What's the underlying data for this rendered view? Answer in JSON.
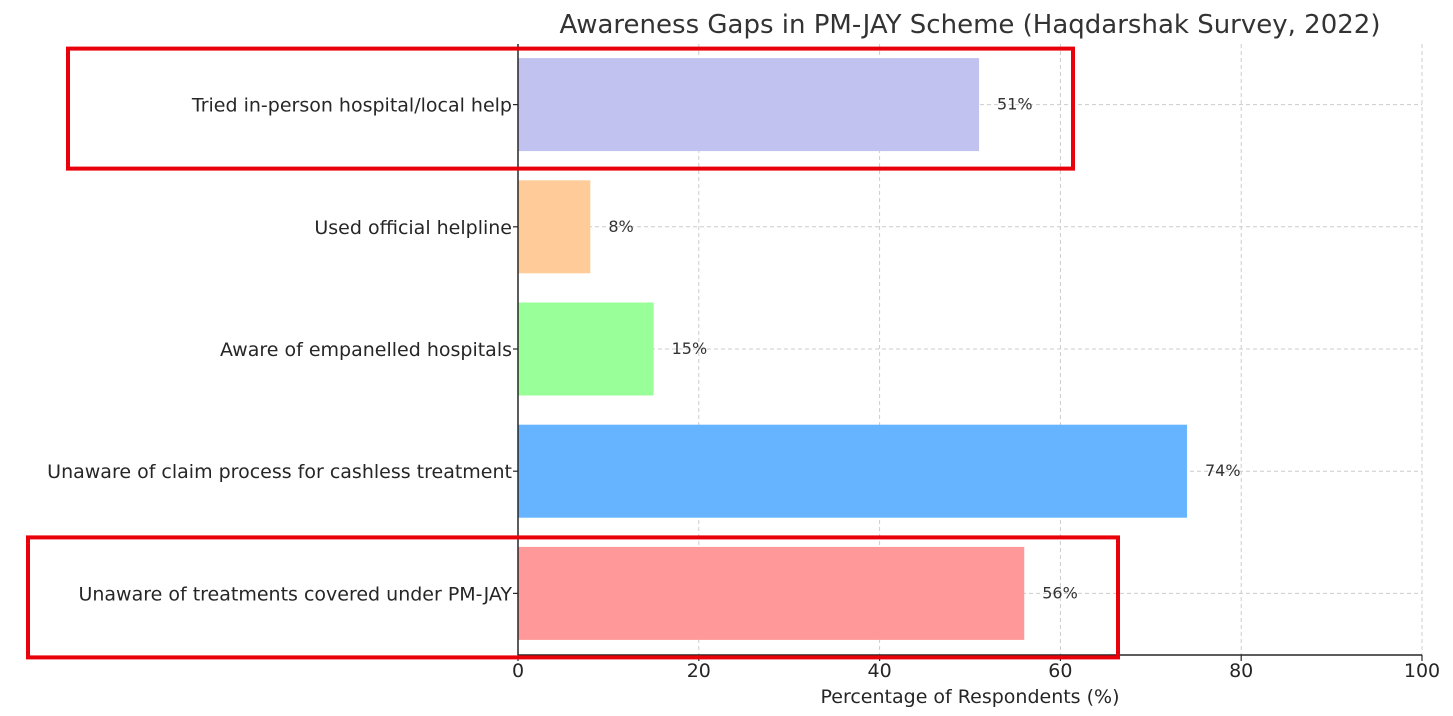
{
  "chart_data": {
    "type": "bar",
    "orientation": "horizontal",
    "title": "Awareness Gaps in PM-JAY Scheme (Haqdarshak Survey, 2022)",
    "xlabel": "Percentage of Respondents (%)",
    "ylabel": "",
    "xlim": [
      0,
      100
    ],
    "x_ticks": [
      0,
      20,
      40,
      60,
      80,
      100
    ],
    "grid": true,
    "categories": [
      "Unaware of treatments covered under PM-JAY",
      "Unaware of claim process for cashless treatment",
      "Aware of empanelled hospitals",
      "Used official helpline",
      "Tried in-person hospital/local help"
    ],
    "values": [
      56,
      74,
      15,
      8,
      51
    ],
    "value_labels": [
      "56%",
      "74%",
      "15%",
      "8%",
      "51%"
    ],
    "colors": [
      "#ff9999",
      "#66b3ff",
      "#99ff99",
      "#ffcc99",
      "#c2c2f0"
    ],
    "highlighted_categories": [
      "Tried in-person hospital/local help",
      "Unaware of treatments covered under PM-JAY"
    ],
    "highlight_color": "#e8000b"
  }
}
